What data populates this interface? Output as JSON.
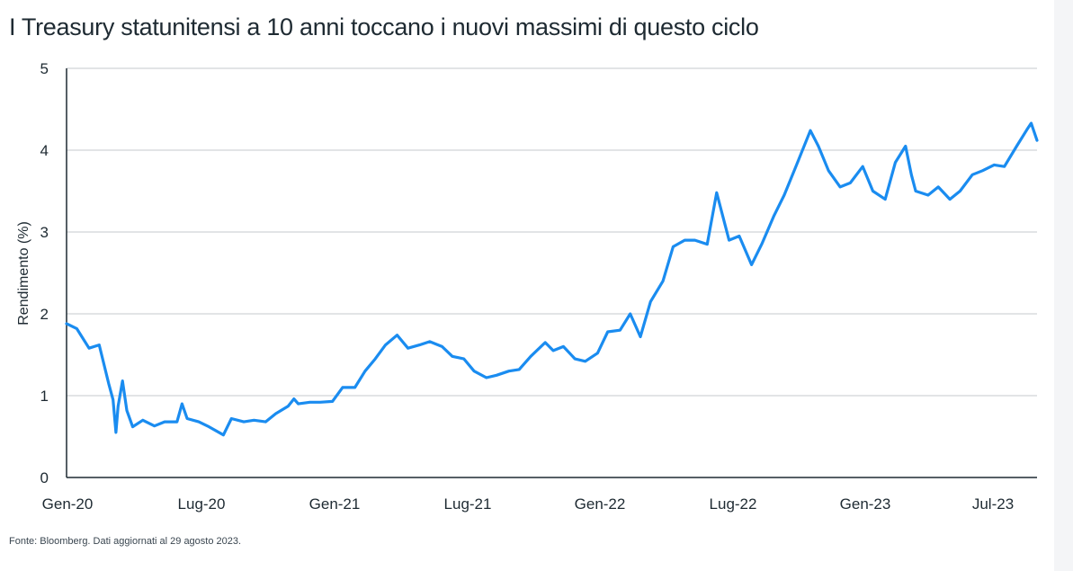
{
  "title": "I Treasury statunitensi a 10 anni toccano i nuovi massimi di questo ciclo",
  "source": "Fonte: Bloomberg. Dati aggiornati al 29 agosto 2023.",
  "chart_data": {
    "type": "line",
    "title": "I Treasury statunitensi a 10 anni toccano i nuovi massimi di questo ciclo",
    "xlabel": "",
    "ylabel": "Rendimento (%)",
    "ylim": [
      0,
      5
    ],
    "yticks": [
      "0",
      "1",
      "2",
      "3",
      "4",
      "5"
    ],
    "xticks": [
      "Gen-20",
      "Lug-20",
      "Gen-21",
      "Lug-21",
      "Gen-22",
      "Lug-22",
      "Gen-23",
      "Jul-23"
    ],
    "grid": true,
    "line_color": "#1a8cf0",
    "series": [
      {
        "x": [
          "2020-01-01",
          "2020-01-15",
          "2020-02-01",
          "2020-02-15",
          "2020-02-28",
          "2020-03-05",
          "2020-03-09",
          "2020-03-12",
          "2020-03-18",
          "2020-03-24",
          "2020-04-01",
          "2020-04-15",
          "2020-05-01",
          "2020-05-15",
          "2020-06-01",
          "2020-06-08",
          "2020-06-15",
          "2020-07-01",
          "2020-07-15",
          "2020-08-04",
          "2020-08-15",
          "2020-09-01",
          "2020-09-15",
          "2020-10-01",
          "2020-10-15",
          "2020-11-01",
          "2020-11-09",
          "2020-11-15",
          "2020-12-01",
          "2020-12-15",
          "2021-01-01",
          "2021-01-15",
          "2021-02-01",
          "2021-02-15",
          "2021-03-01",
          "2021-03-15",
          "2021-03-31",
          "2021-04-15",
          "2021-05-01",
          "2021-05-15",
          "2021-06-01",
          "2021-06-15",
          "2021-07-01",
          "2021-07-15",
          "2021-08-01",
          "2021-08-15",
          "2021-09-01",
          "2021-09-15",
          "2021-10-01",
          "2021-10-21",
          "2021-11-01",
          "2021-11-15",
          "2021-12-01",
          "2021-12-15",
          "2022-01-01",
          "2022-01-15",
          "2022-02-01",
          "2022-02-15",
          "2022-03-01",
          "2022-03-15",
          "2022-04-01",
          "2022-04-15",
          "2022-05-01",
          "2022-05-15",
          "2022-06-01",
          "2022-06-14",
          "2022-07-01",
          "2022-07-15",
          "2022-08-01",
          "2022-08-15",
          "2022-09-01",
          "2022-09-15",
          "2022-10-01",
          "2022-10-21",
          "2022-11-01",
          "2022-11-15",
          "2022-12-01",
          "2022-12-15",
          "2023-01-01",
          "2023-01-15",
          "2023-02-01",
          "2023-02-15",
          "2023-03-01",
          "2023-03-09",
          "2023-03-15",
          "2023-04-01",
          "2023-04-15",
          "2023-05-01",
          "2023-05-15",
          "2023-06-01",
          "2023-06-15",
          "2023-07-01",
          "2023-07-15",
          "2023-08-01",
          "2023-08-15",
          "2023-08-21",
          "2023-08-29"
        ],
        "values": [
          1.88,
          1.82,
          1.58,
          1.62,
          1.15,
          0.95,
          0.55,
          0.87,
          1.18,
          0.82,
          0.62,
          0.7,
          0.63,
          0.68,
          0.68,
          0.9,
          0.72,
          0.68,
          0.62,
          0.52,
          0.72,
          0.68,
          0.7,
          0.68,
          0.78,
          0.87,
          0.96,
          0.9,
          0.92,
          0.92,
          0.93,
          1.1,
          1.1,
          1.3,
          1.45,
          1.62,
          1.74,
          1.58,
          1.62,
          1.66,
          1.6,
          1.48,
          1.45,
          1.3,
          1.22,
          1.25,
          1.3,
          1.32,
          1.48,
          1.65,
          1.55,
          1.6,
          1.45,
          1.42,
          1.52,
          1.78,
          1.8,
          2.0,
          1.72,
          2.15,
          2.4,
          2.82,
          2.9,
          2.9,
          2.85,
          3.48,
          2.9,
          2.95,
          2.6,
          2.85,
          3.2,
          3.45,
          3.8,
          4.24,
          4.05,
          3.75,
          3.55,
          3.6,
          3.8,
          3.5,
          3.4,
          3.85,
          4.05,
          3.7,
          3.5,
          3.45,
          3.55,
          3.4,
          3.5,
          3.7,
          3.75,
          3.82,
          3.8,
          4.05,
          4.25,
          4.33,
          4.12
        ]
      }
    ]
  }
}
